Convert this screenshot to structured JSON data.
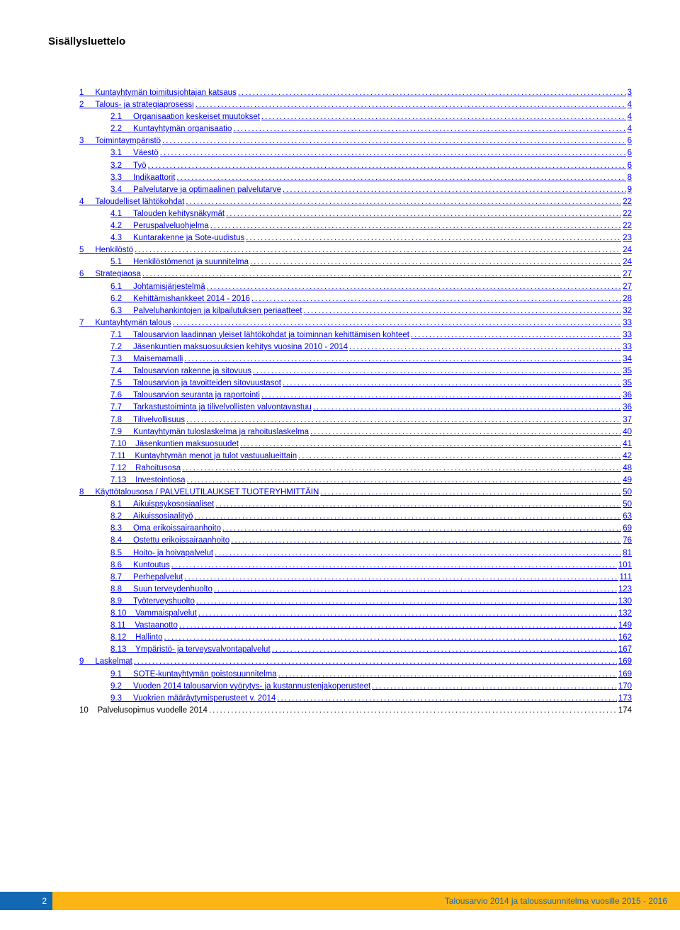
{
  "title": "Sisällysluettelo",
  "colors": {
    "link": "#0000ee",
    "text": "#000000",
    "footer_blue_bg": "#1268b3",
    "footer_yellow_bg": "#fdb515",
    "footer_yellow_text": "#1268b3",
    "footer_blue_text": "#ffffff"
  },
  "typography": {
    "title_fontsize": 15,
    "toc_fontsize": 11.5,
    "footer_fontsize": 12,
    "font_family": "Arial"
  },
  "toc": [
    {
      "num": "1",
      "title": "Kuntayhtymän toimitusjohtajan katsaus",
      "page": "3",
      "level": 1,
      "link": true
    },
    {
      "num": "2",
      "title": "Talous- ja strategiaprosessi",
      "page": "4",
      "level": 1,
      "link": true
    },
    {
      "num": "2.1",
      "title": "Organisaation keskeiset muutokset",
      "page": "4",
      "level": 2,
      "link": true
    },
    {
      "num": "2.2",
      "title": "Kuntayhtymän organisaatio",
      "page": "4",
      "level": 2,
      "link": true
    },
    {
      "num": "3",
      "title": "Toimintaympäristö",
      "page": "6",
      "level": 1,
      "link": true
    },
    {
      "num": "3.1",
      "title": "Väestö",
      "page": "6",
      "level": 2,
      "link": true
    },
    {
      "num": "3.2",
      "title": "Työ",
      "page": "6",
      "level": 2,
      "link": true
    },
    {
      "num": "3.3",
      "title": "Indikaattorit",
      "page": "8",
      "level": 2,
      "link": true
    },
    {
      "num": "3.4",
      "title": "Palvelutarve ja optimaalinen palvelutarve",
      "page": "9",
      "level": 2,
      "link": true
    },
    {
      "num": "4",
      "title": "Taloudelliset lähtökohdat",
      "page": "22",
      "level": 1,
      "link": true
    },
    {
      "num": "4.1",
      "title": "Talouden kehitysnäkymät",
      "page": "22",
      "level": 2,
      "link": true
    },
    {
      "num": "4.2",
      "title": "Peruspalveluohjelma",
      "page": "22",
      "level": 2,
      "link": true
    },
    {
      "num": "4.3",
      "title": "Kuntarakenne ja Sote-uudistus",
      "page": "23",
      "level": 2,
      "link": true
    },
    {
      "num": "5",
      "title": "Henkilöstö",
      "page": "24",
      "level": 1,
      "link": true
    },
    {
      "num": "5.1",
      "title": "Henkilöstömenot ja suunnitelma",
      "page": "24",
      "level": 2,
      "link": true
    },
    {
      "num": "6",
      "title": "Strategiaosa",
      "page": "27",
      "level": 1,
      "link": true
    },
    {
      "num": "6.1",
      "title": "Johtamisjärjestelmä",
      "page": "27",
      "level": 2,
      "link": true
    },
    {
      "num": "6.2",
      "title": "Kehittämishankkeet 2014 - 2016",
      "page": "28",
      "level": 2,
      "link": true
    },
    {
      "num": "6.3",
      "title": "Palveluhankintojen ja kilpailutuksen periaatteet",
      "page": "32",
      "level": 2,
      "link": true
    },
    {
      "num": "7",
      "title": "Kuntayhtymän talous",
      "page": "33",
      "level": 1,
      "link": true
    },
    {
      "num": "7.1",
      "title": "Talousarvion laadinnan yleiset lähtökohdat ja toiminnan kehittämisen kohteet",
      "page": "33",
      "level": 2,
      "link": true
    },
    {
      "num": "7.2",
      "title": "Jäsenkuntien maksuosuuksien kehitys vuosina 2010 - 2014",
      "page": "33",
      "level": 2,
      "link": true
    },
    {
      "num": "7.3",
      "title": "Maisemamalli",
      "page": "34",
      "level": 2,
      "link": true
    },
    {
      "num": "7.4",
      "title": "Talousarvion rakenne ja sitovuus",
      "page": "35",
      "level": 2,
      "link": true
    },
    {
      "num": "7.5",
      "title": "Talousarvion ja tavoitteiden sitovuustasot",
      "page": "35",
      "level": 2,
      "link": true
    },
    {
      "num": "7.6",
      "title": "Talousarvion seuranta ja raportointi",
      "page": "36",
      "level": 2,
      "link": true
    },
    {
      "num": "7.7",
      "title": "Tarkastustoiminta ja tilivelvollisten valvontavastuu",
      "page": "36",
      "level": 2,
      "link": true
    },
    {
      "num": "7.8",
      "title": "Tilivelvollisuus",
      "page": "37",
      "level": 2,
      "link": true
    },
    {
      "num": "7.9",
      "title": "Kuntayhtymän tuloslaskelma ja rahoituslaskelma",
      "page": "40",
      "level": 2,
      "link": true
    },
    {
      "num": "7.10",
      "title": "Jäsenkuntien maksuosuudet",
      "page": "41",
      "level": 2,
      "link": true
    },
    {
      "num": "7.11",
      "title": "Kuntayhtymän menot ja tulot vastuualueittain",
      "page": "42",
      "level": 2,
      "link": true
    },
    {
      "num": "7.12",
      "title": "Rahoitusosa",
      "page": "48",
      "level": 2,
      "link": true
    },
    {
      "num": "7.13",
      "title": "Investointiosa",
      "page": "49",
      "level": 2,
      "link": true
    },
    {
      "num": "8",
      "title": "Käyttötalousosa / PALVELUTILAUKSET TUOTERYHMITTÄIN",
      "page": "50",
      "level": 1,
      "link": true
    },
    {
      "num": "8.1",
      "title": "Aikuispsykososiaaliset",
      "page": "50",
      "level": 2,
      "link": true
    },
    {
      "num": "8.2",
      "title": "Aikuissosiaalityö",
      "page": "63",
      "level": 2,
      "link": true
    },
    {
      "num": "8.3",
      "title": "Oma erikoissairaanhoito",
      "page": "69",
      "level": 2,
      "link": true
    },
    {
      "num": "8.4",
      "title": "Ostettu erikoissairaanhoito",
      "page": "76",
      "level": 2,
      "link": true
    },
    {
      "num": "8.5",
      "title": "Hoito- ja hoivapalvelut",
      "page": "81",
      "level": 2,
      "link": true
    },
    {
      "num": "8.6",
      "title": "Kuntoutus",
      "page": "101",
      "level": 2,
      "link": true
    },
    {
      "num": "8.7",
      "title": "Perhepalvelut",
      "page": "111",
      "level": 2,
      "link": true
    },
    {
      "num": "8.8",
      "title": "Suun terveydenhuolto",
      "page": "123",
      "level": 2,
      "link": true
    },
    {
      "num": "8.9",
      "title": "Työterveyshuolto",
      "page": "130",
      "level": 2,
      "link": true
    },
    {
      "num": "8.10",
      "title": "Vammaispalvelut",
      "page": "132",
      "level": 2,
      "link": true
    },
    {
      "num": "8.11",
      "title": "Vastaanotto",
      "page": "149",
      "level": 2,
      "link": true
    },
    {
      "num": "8.12",
      "title": "Hallinto",
      "page": "162",
      "level": 2,
      "link": true
    },
    {
      "num": "8.13",
      "title": "Ympäristö- ja terveysvalvontapalvelut",
      "page": "167",
      "level": 2,
      "link": true
    },
    {
      "num": "9",
      "title": "Laskelmat",
      "page": "169",
      "level": 1,
      "link": true
    },
    {
      "num": "9.1",
      "title": "SOTE-kuntayhtymän poistosuunnitelma",
      "page": "169",
      "level": 2,
      "link": true
    },
    {
      "num": "9.2",
      "title": "Vuoden 2014 talousarvion vyörytys- ja kustannustenjakoperusteet",
      "page": "170",
      "level": 2,
      "link": true
    },
    {
      "num": "9.3",
      "title": "Vuokrien määräytymisperusteet v. 2014",
      "page": "173",
      "level": 2,
      "link": true
    },
    {
      "num": "10",
      "title": "Palvelusopimus vuodelle 2014",
      "page": "174",
      "level": 1,
      "link": false
    }
  ],
  "footer": {
    "page_number": "2",
    "text": "Talousarvio 2014 ja taloussuunnitelma vuosille 2015 - 2016"
  }
}
